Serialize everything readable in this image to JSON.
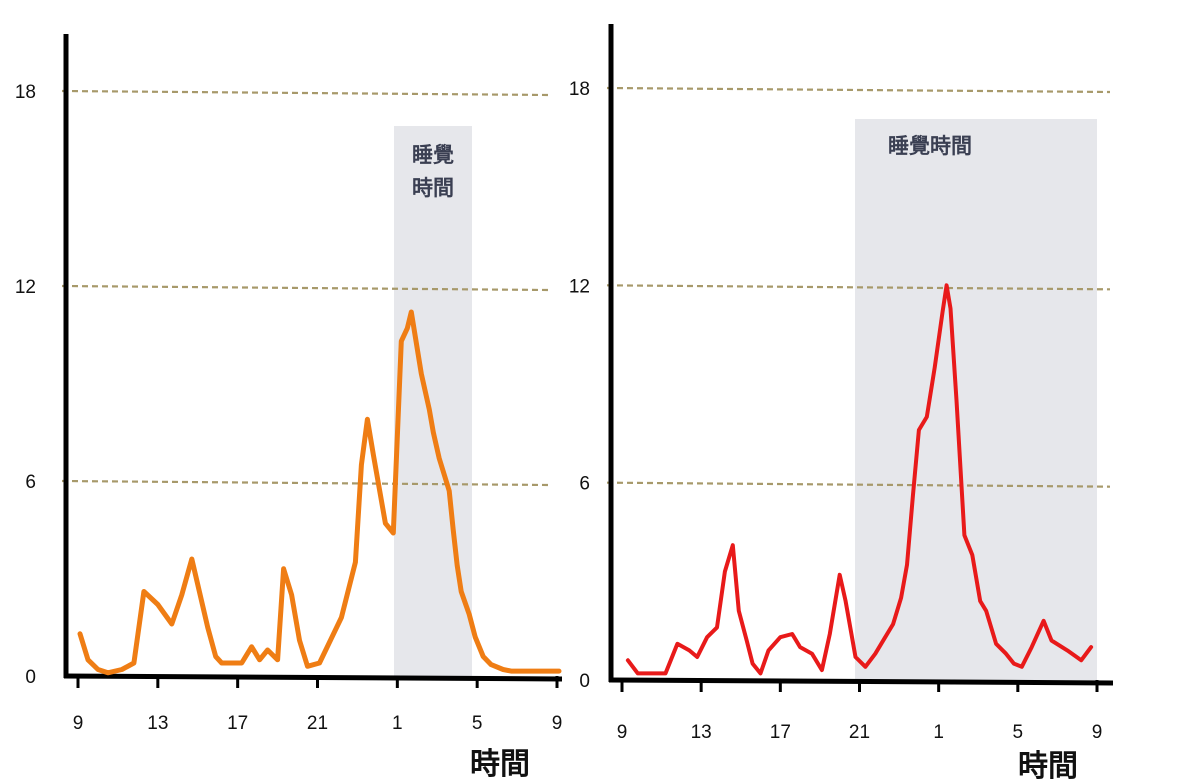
{
  "chart_data": [
    {
      "type": "line",
      "title": "",
      "xlabel": "時間",
      "ylabel": "",
      "ylim": [
        0,
        18
      ],
      "yticks": [
        0,
        6,
        12,
        18
      ],
      "x_tick_labels": [
        "9",
        "13",
        "17",
        "21",
        "1",
        "5",
        "9"
      ],
      "grid": "dashed horizontal at 6, 12, 18",
      "band": {
        "label": [
          "睡覺",
          "時間"
        ],
        "from": "1",
        "to": "5"
      },
      "colors": {
        "line": "#ef7d14",
        "band": "#e6e7eb",
        "grid": "#a7996a",
        "axis": "#000000"
      },
      "series": [
        {
          "x": [
            9.1,
            9.5,
            10,
            10.5,
            11.2,
            11.8,
            12.3,
            13,
            13.7,
            14.2,
            14.7,
            15.5,
            15.9,
            16.2,
            16.7,
            17.2,
            17.7,
            18.1,
            18.5,
            19,
            19.3,
            19.7,
            20.1,
            20.5,
            21.1,
            22.2,
            22.9,
            23.2,
            23.5,
            23.8,
            24.4,
            24.8,
            25.2,
            25.5,
            25.7,
            26.2,
            26.6,
            26.8,
            27.1,
            27.6,
            27.8,
            28,
            28.2,
            28.6,
            28.9,
            29.3,
            29.7,
            30.3,
            30.7,
            31.5,
            32.2,
            32.8,
            33.1
          ],
          "values": [
            1.3,
            0.5,
            0.2,
            0.1,
            0.2,
            0.4,
            2.6,
            2.2,
            1.6,
            2.5,
            3.6,
            1.5,
            0.6,
            0.4,
            0.4,
            0.4,
            0.9,
            0.5,
            0.8,
            0.5,
            3.3,
            2.5,
            1.1,
            0.3,
            0.4,
            1.8,
            3.5,
            6.5,
            7.9,
            6.8,
            4.7,
            4.4,
            10.3,
            10.7,
            11.2,
            9.3,
            8.2,
            7.5,
            6.7,
            5.7,
            4.5,
            3.4,
            2.6,
            1.9,
            1.2,
            0.6,
            0.35,
            0.2,
            0.15,
            0.15,
            0.15,
            0.15,
            0.15
          ]
        }
      ]
    },
    {
      "type": "line",
      "title": "",
      "xlabel": "時間",
      "ylabel": "",
      "ylim": [
        0,
        18
      ],
      "yticks": [
        0,
        6,
        12,
        18
      ],
      "x_tick_labels": [
        "9",
        "13",
        "17",
        "21",
        "1",
        "5",
        "9"
      ],
      "grid": "dashed horizontal at 6, 12, 18",
      "band": {
        "label": [
          "睡覺時間"
        ],
        "from": "21",
        "to": "9"
      },
      "colors": {
        "line": "#e81a1a",
        "band": "#e6e7eb",
        "grid": "#a7996a",
        "axis": "#000000"
      },
      "series": [
        {
          "x": [
            9.3,
            9.8,
            10.5,
            11.2,
            11.8,
            12.4,
            12.8,
            13.3,
            13.8,
            14.2,
            14.6,
            14.9,
            15.3,
            15.6,
            16,
            16.4,
            17,
            17.6,
            18,
            18.6,
            19.1,
            19.5,
            20,
            20.3,
            20.8,
            21.3,
            21.8,
            22.3,
            22.7,
            23.1,
            23.4,
            23.7,
            24,
            24.4,
            24.8,
            25.2,
            25.4,
            25.6,
            25.9,
            26.3,
            26.7,
            27.1,
            27.4,
            27.9,
            28.4,
            28.8,
            29.2,
            29.7,
            30.3,
            30.7,
            31.5,
            32.2,
            32.7
          ],
          "values": [
            0.6,
            0.2,
            0.2,
            0.2,
            1.1,
            0.9,
            0.7,
            1.3,
            1.6,
            3.3,
            4.1,
            2.1,
            1.2,
            0.5,
            0.2,
            0.9,
            1.3,
            1.4,
            1.0,
            0.8,
            0.3,
            1.4,
            3.2,
            2.4,
            0.7,
            0.4,
            0.8,
            1.3,
            1.7,
            2.5,
            3.5,
            5.6,
            7.6,
            8.0,
            9.5,
            11.2,
            12.0,
            11.3,
            8.5,
            4.4,
            3.8,
            2.4,
            2.1,
            1.1,
            0.8,
            0.5,
            0.4,
            1.0,
            1.8,
            1.2,
            0.9,
            0.6,
            1.0
          ]
        }
      ]
    }
  ]
}
